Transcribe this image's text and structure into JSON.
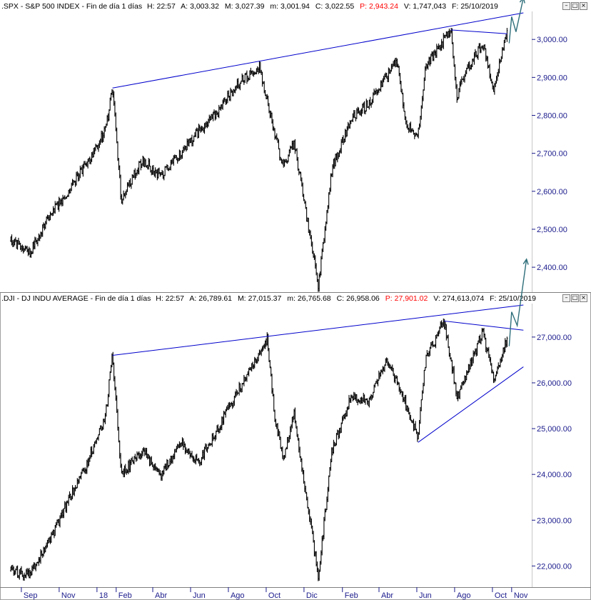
{
  "panels": [
    {
      "header": {
        "symbol": ".SPX",
        "name": "S&P 500 INDEX",
        "period": "Fin de día 1 días",
        "h_label": "H:",
        "h_value": "22:57",
        "a_label": "A:",
        "a_value": "3,003.32",
        "m_label": "M:",
        "m_value": "3,027.39",
        "mm_label": "m:",
        "mm_value": "3,001.94",
        "c_label": "C:",
        "c_value": "3,022.55",
        "p_label": "P:",
        "p_value": "2,943.24",
        "v_label": "V:",
        "v_value": "1,747,043",
        "f_label": "F:",
        "f_value": "25/10/2019"
      },
      "y_ticks": [
        "3,000.00",
        "2,900.00",
        "2,800.00",
        "2,700.00",
        "2,600.00",
        "2,500.00",
        "2,400.00"
      ]
    },
    {
      "header": {
        "symbol": ".DJI",
        "name": "DJ INDU AVERAGE",
        "period": "Fin de día 1 días",
        "h_label": "H:",
        "h_value": "22:57",
        "a_label": "A:",
        "a_value": "26,789.61",
        "m_label": "M:",
        "m_value": "27,015.37",
        "mm_label": "m:",
        "mm_value": "26,765.68",
        "c_label": "C:",
        "c_value": "26,958.06",
        "p_label": "P:",
        "p_value": "27,901.02",
        "v_label": "V:",
        "v_value": "274,613,074",
        "f_label": "F:",
        "f_value": "25/10/2019"
      },
      "y_ticks": [
        "27,000.00",
        "26,000.00",
        "25,000.00",
        "24,000.00",
        "23,000.00",
        "22,000.00"
      ]
    }
  ],
  "x_ticks": [
    "Sep",
    "Nov",
    "18",
    "Feb",
    "Abr",
    "Jun",
    "Ago",
    "Oct",
    "Dic",
    "Feb",
    "Abr",
    "Jun",
    "Ago",
    "Oct",
    "Nov"
  ],
  "colors": {
    "price_bars": "#000000",
    "trendlines": "#0000cc",
    "forecast_arrow": "#2e6e7a",
    "axis_text": "#1a1a8c",
    "header_highlight": "#ff0000"
  },
  "chart_data": [
    {
      "type": "ohlc",
      "symbol": ".SPX",
      "ylim": [
        2340,
        3070
      ],
      "x_range": [
        "2017-08",
        "2019-11"
      ],
      "series": [
        {
          "x": [
            "2017-08",
            "2017-09",
            "2017-10",
            "2017-11",
            "2017-12",
            "2018-01",
            "2018-01-26",
            "2018-02-09",
            "2018-03",
            "2018-04",
            "2018-05",
            "2018-06",
            "2018-07",
            "2018-08",
            "2018-09-20",
            "2018-10",
            "2018-10-29",
            "2018-11",
            "2018-12-24",
            "2019-01",
            "2019-02",
            "2019-03",
            "2019-04-30",
            "2019-05",
            "2019-06-03",
            "2019-06",
            "2019-07-26",
            "2019-08-05",
            "2019-08",
            "2019-09",
            "2019-10-03",
            "2019-10-25"
          ],
          "values": [
            2470,
            2440,
            2530,
            2600,
            2670,
            2760,
            2872,
            2580,
            2680,
            2640,
            2700,
            2760,
            2810,
            2880,
            2930,
            2750,
            2660,
            2730,
            2350,
            2660,
            2790,
            2830,
            2945,
            2770,
            2745,
            2930,
            3025,
            2850,
            2900,
            2990,
            2870,
            3022
          ]
        }
      ],
      "annotations": [
        {
          "type": "trendline",
          "from": [
            "2018-01-26",
            2872
          ],
          "to": [
            "2019-11-20",
            3070
          ]
        },
        {
          "type": "trendline",
          "from": [
            "2019-07-26",
            3025
          ],
          "to": [
            "2019-10-25",
            3015
          ]
        },
        {
          "type": "forecast_arrow",
          "path": [
            [
              "2019-10-28",
              2990
            ],
            [
              "2019-11-01",
              3060
            ],
            [
              "2019-11-08",
              3020
            ],
            [
              "2019-11-20",
              3110
            ]
          ]
        }
      ]
    },
    {
      "type": "ohlc",
      "symbol": ".DJI",
      "ylim": [
        21600,
        27700
      ],
      "x_range": [
        "2017-08",
        "2019-11"
      ],
      "series": [
        {
          "x": [
            "2017-08",
            "2017-09",
            "2017-10",
            "2017-11",
            "2017-12",
            "2018-01",
            "2018-01-26",
            "2018-02-09",
            "2018-03",
            "2018-04",
            "2018-05",
            "2018-06",
            "2018-07",
            "2018-08",
            "2018-10-03",
            "2018-10",
            "2018-10-29",
            "2018-11",
            "2018-12-24",
            "2019-01",
            "2019-02",
            "2019-03",
            "2019-04",
            "2019-05",
            "2019-06-03",
            "2019-06",
            "2019-07-15",
            "2019-08-05",
            "2019-08",
            "2019-09",
            "2019-10-03",
            "2019-10-25"
          ],
          "values": [
            21900,
            21800,
            22500,
            23400,
            24200,
            25300,
            26600,
            24000,
            24500,
            24000,
            24700,
            24300,
            25000,
            25800,
            26950,
            25200,
            24400,
            25300,
            21800,
            24500,
            25700,
            25600,
            26500,
            25500,
            24800,
            26500,
            27350,
            25700,
            26000,
            27100,
            26100,
            26958
          ]
        }
      ],
      "annotations": [
        {
          "type": "trendline",
          "from": [
            "2018-01-26",
            26600
          ],
          "to": [
            "2019-11-20",
            27700
          ]
        },
        {
          "type": "trendline",
          "from": [
            "2019-07-15",
            27350
          ],
          "to": [
            "2019-11-20",
            27150
          ]
        },
        {
          "type": "trendline",
          "from": [
            "2019-06-03",
            24700
          ],
          "to": [
            "2019-11-20",
            26350
          ]
        },
        {
          "type": "forecast_arrow",
          "path": [
            [
              "2019-10-28",
              26800
            ],
            [
              "2019-11-01",
              27550
            ],
            [
              "2019-11-10",
              27250
            ],
            [
              "2019-11-25",
              28700
            ]
          ]
        }
      ]
    }
  ]
}
